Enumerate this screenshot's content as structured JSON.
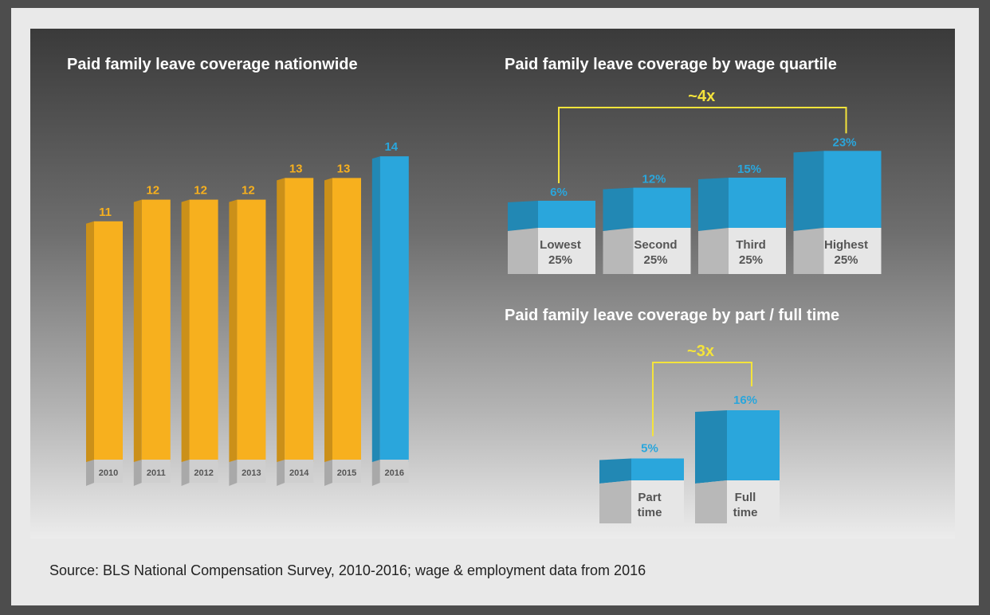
{
  "colors": {
    "orange": "#f7b01e",
    "blue": "#2aa6dc",
    "yellow": "#f4e33b"
  },
  "titles": {
    "nationwide": "Paid family leave coverage nationwide",
    "quartile": "Paid family leave coverage by wage quartile",
    "parttime": "Paid family leave coverage by part / full time"
  },
  "source": "Source: BLS National Compensation Survey, 2010-2016; wage & employment data from 2016",
  "chart_data": [
    {
      "type": "bar",
      "title": "Paid family leave coverage nationwide",
      "categories": [
        "2010",
        "2011",
        "2012",
        "2013",
        "2014",
        "2015",
        "2016"
      ],
      "values": [
        11,
        12,
        12,
        12,
        13,
        13,
        14
      ],
      "highlight_index": 6
    },
    {
      "type": "bar",
      "title": "Paid family leave coverage by wage quartile",
      "categories": [
        "Lowest 25%",
        "Second 25%",
        "Third 25%",
        "Highest 25%"
      ],
      "values": [
        6,
        12,
        15,
        23
      ],
      "value_labels": [
        "6%",
        "12%",
        "15%",
        "23%"
      ],
      "annotation": "~4x"
    },
    {
      "type": "bar",
      "title": "Paid family leave coverage by part / full time",
      "categories": [
        "Part time",
        "Full time"
      ],
      "values": [
        5,
        16
      ],
      "value_labels": [
        "5%",
        "16%"
      ],
      "annotation": "~3x"
    }
  ]
}
